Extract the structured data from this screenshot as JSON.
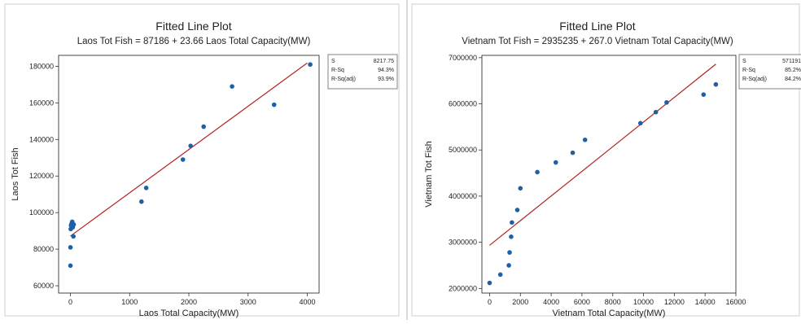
{
  "chart_data": [
    {
      "type": "scatter",
      "title": "Fitted Line Plot",
      "subtitle": "Laos Tot Fish = 87186 + 23.66 Laos Total Capacity(MW)",
      "xlabel": "Laos Total Capacity(MW)",
      "ylabel": "Laos Tot Fish",
      "xlim": [
        -200,
        4200
      ],
      "ylim": [
        56000,
        186000
      ],
      "xticks": [
        "0",
        "1000",
        "2000",
        "3000",
        "4000"
      ],
      "yticks": [
        "60000",
        "80000",
        "100000",
        "120000",
        "140000",
        "160000",
        "180000"
      ],
      "fit": {
        "intercept": 87186,
        "slope": 23.66,
        "x_range": [
          0,
          4000
        ]
      },
      "points": [
        {
          "x": 0,
          "y": 71000
        },
        {
          "x": 0,
          "y": 81000
        },
        {
          "x": 5,
          "y": 91000
        },
        {
          "x": 10,
          "y": 93000
        },
        {
          "x": 20,
          "y": 94000
        },
        {
          "x": 30,
          "y": 95000
        },
        {
          "x": 40,
          "y": 92000
        },
        {
          "x": 50,
          "y": 87000
        },
        {
          "x": 55,
          "y": 93500
        },
        {
          "x": 1200,
          "y": 106000
        },
        {
          "x": 1280,
          "y": 113500
        },
        {
          "x": 1900,
          "y": 129000
        },
        {
          "x": 2030,
          "y": 136500
        },
        {
          "x": 2250,
          "y": 147000
        },
        {
          "x": 2730,
          "y": 169000
        },
        {
          "x": 3440,
          "y": 159000
        },
        {
          "x": 4050,
          "y": 181000
        }
      ],
      "stats": [
        {
          "label": "S",
          "value": "8217.75"
        },
        {
          "label": "R-Sq",
          "value": "94.3%"
        },
        {
          "label": "R-Sq(adj)",
          "value": "93.9%"
        }
      ],
      "marker_color": "#1f5fa8",
      "line_color": "#b22222"
    },
    {
      "type": "scatter",
      "title": "Fitted Line Plot",
      "subtitle": "Vietnam Tot Fish = 2935235 + 267.0 Vietnam Total Capacity(MW)",
      "xlabel": "Vietnam Total Capacity(MW)",
      "ylabel": "Vietnam Tot Fish",
      "xlim": [
        -500,
        16000
      ],
      "ylim": [
        1900000,
        7050000
      ],
      "xticks": [
        "0",
        "2000",
        "4000",
        "6000",
        "8000",
        "10000",
        "12000",
        "14000",
        "16000"
      ],
      "yticks": [
        "2000000",
        "3000000",
        "4000000",
        "5000000",
        "6000000",
        "7000000"
      ],
      "fit": {
        "intercept": 2935235,
        "slope": 267.0,
        "x_range": [
          0,
          14700
        ]
      },
      "points": [
        {
          "x": 0,
          "y": 2120000
        },
        {
          "x": 700,
          "y": 2300000
        },
        {
          "x": 1250,
          "y": 2500000
        },
        {
          "x": 1300,
          "y": 2780000
        },
        {
          "x": 1400,
          "y": 3120000
        },
        {
          "x": 1450,
          "y": 3430000
        },
        {
          "x": 1800,
          "y": 3700000
        },
        {
          "x": 2000,
          "y": 4170000
        },
        {
          "x": 3100,
          "y": 4520000
        },
        {
          "x": 4300,
          "y": 4730000
        },
        {
          "x": 5400,
          "y": 4940000
        },
        {
          "x": 6200,
          "y": 5220000
        },
        {
          "x": 9800,
          "y": 5580000
        },
        {
          "x": 10800,
          "y": 5820000
        },
        {
          "x": 11500,
          "y": 6030000
        },
        {
          "x": 13900,
          "y": 6200000
        },
        {
          "x": 14700,
          "y": 6420000
        }
      ],
      "stats": [
        {
          "label": "S",
          "value": "571191"
        },
        {
          "label": "R-Sq",
          "value": "85.2%"
        },
        {
          "label": "R-Sq(adj)",
          "value": "84.2%"
        }
      ],
      "marker_color": "#1f5fa8",
      "line_color": "#b22222"
    }
  ]
}
